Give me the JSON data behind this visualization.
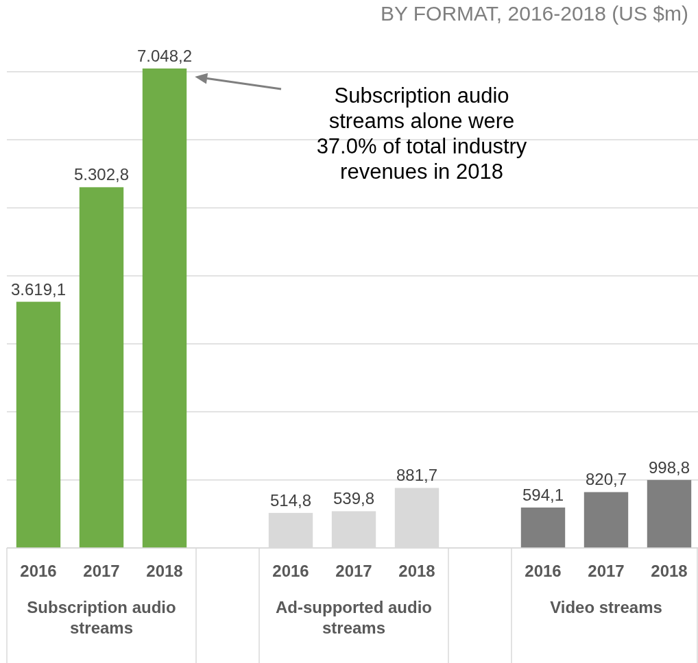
{
  "chart_data": {
    "type": "bar",
    "title": "BY FORMAT, 2016-2018 (US $m)",
    "categories": [
      "2016",
      "2017",
      "2018",
      null,
      "2016",
      "2017",
      "2018",
      null,
      "2016",
      "2017",
      "2018"
    ],
    "values": [
      3619.1,
      5302.8,
      7048.2,
      null,
      514.8,
      539.8,
      881.7,
      null,
      594.1,
      820.7,
      998.8
    ],
    "colors": [
      "#70ad47",
      "#70ad47",
      "#70ad47",
      null,
      "#d9d9d9",
      "#d9d9d9",
      "#d9d9d9",
      null,
      "#7f7f7f",
      "#7f7f7f",
      "#7f7f7f"
    ],
    "value_labels": [
      "3.619,1",
      "5.302,8",
      "7.048,2",
      null,
      "514,8",
      "539,8",
      "881,7",
      null,
      "594,1",
      "820,7",
      "998,8"
    ],
    "yticks": [
      {
        "value": 0,
        "label": null
      },
      {
        "value": 1000,
        "label": null
      },
      {
        "value": 2000,
        "label": null
      },
      {
        "value": 3000,
        "label": null
      },
      {
        "value": 4000,
        "label": null
      },
      {
        "value": 5000,
        "label": null
      },
      {
        "value": 6000,
        "label": null
      },
      {
        "value": 7000,
        "label": null
      }
    ],
    "tick_labels": "x",
    "grid": "y",
    "annotations": [
      "Subscription audio streams alone were 37.0% of total industry revenues in 2018",
      "Subscription audio streams",
      "Ad-supported audio streams",
      "Video streams"
    ]
  }
}
